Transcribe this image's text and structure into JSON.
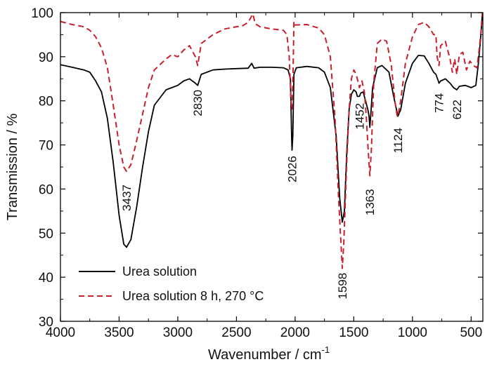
{
  "chart_data": {
    "type": "line",
    "xlabel": "Wavenumber / cm",
    "xlabel_sup": "-1",
    "ylabel": "Transmission / %",
    "xlim": [
      4000,
      400
    ],
    "ylim": [
      30,
      100
    ],
    "x_reversed": true,
    "x_ticks": [
      4000,
      3500,
      3000,
      2500,
      2000,
      1500,
      1000,
      500
    ],
    "y_ticks": [
      30,
      40,
      50,
      60,
      70,
      80,
      90,
      100
    ],
    "grid": false,
    "legend_position": "bottom-left",
    "series": [
      {
        "name": "Urea solution",
        "color": "#000000",
        "dash": "solid",
        "points": [
          [
            4000,
            88.2
          ],
          [
            3900,
            87.6
          ],
          [
            3800,
            87.0
          ],
          [
            3750,
            86.5
          ],
          [
            3700,
            84.5
          ],
          [
            3650,
            82.0
          ],
          [
            3600,
            76.0
          ],
          [
            3550,
            66.0
          ],
          [
            3500,
            54.0
          ],
          [
            3460,
            47.5
          ],
          [
            3437,
            46.8
          ],
          [
            3400,
            48.5
          ],
          [
            3350,
            56.0
          ],
          [
            3300,
            65.0
          ],
          [
            3250,
            73.0
          ],
          [
            3200,
            79.0
          ],
          [
            3100,
            82.5
          ],
          [
            3000,
            83.5
          ],
          [
            2950,
            84.5
          ],
          [
            2900,
            85.0
          ],
          [
            2850,
            84.0
          ],
          [
            2830,
            83.5
          ],
          [
            2800,
            86.0
          ],
          [
            2700,
            87.0
          ],
          [
            2600,
            87.2
          ],
          [
            2500,
            87.3
          ],
          [
            2400,
            87.4
          ],
          [
            2370,
            88.5
          ],
          [
            2350,
            87.4
          ],
          [
            2300,
            87.6
          ],
          [
            2200,
            87.6
          ],
          [
            2100,
            87.5
          ],
          [
            2060,
            87.0
          ],
          [
            2040,
            85.0
          ],
          [
            2030,
            72.0
          ],
          [
            2026,
            68.8
          ],
          [
            2020,
            72.0
          ],
          [
            2010,
            86.0
          ],
          [
            1990,
            87.5
          ],
          [
            1900,
            87.8
          ],
          [
            1800,
            87.5
          ],
          [
            1750,
            86.5
          ],
          [
            1700,
            83.0
          ],
          [
            1650,
            72.0
          ],
          [
            1620,
            58.0
          ],
          [
            1598,
            52.5
          ],
          [
            1580,
            55.0
          ],
          [
            1560,
            68.0
          ],
          [
            1540,
            78.0
          ],
          [
            1520,
            81.5
          ],
          [
            1500,
            82.5
          ],
          [
            1480,
            82.0
          ],
          [
            1470,
            81.0
          ],
          [
            1452,
            81.0
          ],
          [
            1440,
            81.8
          ],
          [
            1420,
            82.0
          ],
          [
            1400,
            80.0
          ],
          [
            1380,
            78.0
          ],
          [
            1370,
            76.5
          ],
          [
            1363,
            74.0
          ],
          [
            1355,
            77.0
          ],
          [
            1340,
            83.0
          ],
          [
            1300,
            87.5
          ],
          [
            1260,
            88.0
          ],
          [
            1200,
            86.5
          ],
          [
            1160,
            81.0
          ],
          [
            1124,
            76.5
          ],
          [
            1100,
            78.0
          ],
          [
            1060,
            84.0
          ],
          [
            1000,
            88.5
          ],
          [
            950,
            90.3
          ],
          [
            900,
            90.2
          ],
          [
            860,
            88.5
          ],
          [
            820,
            86.5
          ],
          [
            800,
            86.0
          ],
          [
            780,
            84.5
          ],
          [
            774,
            84.0
          ],
          [
            760,
            84.5
          ],
          [
            720,
            85.0
          ],
          [
            680,
            84.0
          ],
          [
            650,
            83.0
          ],
          [
            622,
            82.5
          ],
          [
            600,
            83.3
          ],
          [
            550,
            83.5
          ],
          [
            500,
            83.0
          ],
          [
            460,
            83.5
          ],
          [
            440,
            88.0
          ],
          [
            420,
            94.0
          ],
          [
            405,
            99.5
          ]
        ]
      },
      {
        "name": "Urea solution 8 h, 270 °C",
        "color": "#c8202e",
        "dash": "dashed",
        "points": [
          [
            4000,
            98.0
          ],
          [
            3900,
            97.3
          ],
          [
            3800,
            96.8
          ],
          [
            3750,
            96.0
          ],
          [
            3700,
            94.5
          ],
          [
            3650,
            92.0
          ],
          [
            3600,
            87.5
          ],
          [
            3550,
            79.0
          ],
          [
            3500,
            70.0
          ],
          [
            3460,
            65.0
          ],
          [
            3437,
            64.0
          ],
          [
            3400,
            65.5
          ],
          [
            3350,
            71.0
          ],
          [
            3300,
            77.0
          ],
          [
            3250,
            83.0
          ],
          [
            3200,
            87.0
          ],
          [
            3100,
            89.5
          ],
          [
            3050,
            90.5
          ],
          [
            3000,
            90.0
          ],
          [
            2950,
            91.5
          ],
          [
            2900,
            92.5
          ],
          [
            2850,
            90.0
          ],
          [
            2830,
            88.0
          ],
          [
            2800,
            93.0
          ],
          [
            2700,
            95.0
          ],
          [
            2600,
            96.3
          ],
          [
            2500,
            96.8
          ],
          [
            2450,
            97.0
          ],
          [
            2400,
            97.8
          ],
          [
            2360,
            99.7
          ],
          [
            2340,
            97.5
          ],
          [
            2300,
            96.8
          ],
          [
            2200,
            96.3
          ],
          [
            2100,
            96.0
          ],
          [
            2070,
            95.0
          ],
          [
            2050,
            90.0
          ],
          [
            2035,
            80.0
          ],
          [
            2026,
            78.0
          ],
          [
            2018,
            86.0
          ],
          [
            2010,
            98.0
          ],
          [
            2000,
            97.2
          ],
          [
            1900,
            97.3
          ],
          [
            1800,
            96.5
          ],
          [
            1750,
            95.0
          ],
          [
            1700,
            90.0
          ],
          [
            1660,
            76.0
          ],
          [
            1630,
            58.0
          ],
          [
            1610,
            48.0
          ],
          [
            1598,
            42.0
          ],
          [
            1585,
            48.0
          ],
          [
            1560,
            66.0
          ],
          [
            1540,
            78.0
          ],
          [
            1520,
            85.0
          ],
          [
            1500,
            87.0
          ],
          [
            1480,
            86.0
          ],
          [
            1460,
            84.0
          ],
          [
            1452,
            83.0
          ],
          [
            1430,
            84.5
          ],
          [
            1410,
            82.0
          ],
          [
            1395,
            77.0
          ],
          [
            1380,
            70.0
          ],
          [
            1363,
            63.0
          ],
          [
            1350,
            69.0
          ],
          [
            1330,
            84.0
          ],
          [
            1300,
            93.0
          ],
          [
            1260,
            94.0
          ],
          [
            1220,
            93.5
          ],
          [
            1180,
            88.0
          ],
          [
            1150,
            80.0
          ],
          [
            1130,
            76.5
          ],
          [
            1124,
            76.5
          ],
          [
            1100,
            80.0
          ],
          [
            1060,
            88.5
          ],
          [
            1000,
            94.5
          ],
          [
            950,
            97.3
          ],
          [
            900,
            97.8
          ],
          [
            860,
            96.8
          ],
          [
            820,
            95.0
          ],
          [
            800,
            95.0
          ],
          [
            790,
            90.0
          ],
          [
            774,
            88.0
          ],
          [
            760,
            92.5
          ],
          [
            720,
            93.5
          ],
          [
            680,
            89.5
          ],
          [
            660,
            86.5
          ],
          [
            640,
            89.5
          ],
          [
            622,
            86.0
          ],
          [
            600,
            90.5
          ],
          [
            570,
            91.0
          ],
          [
            540,
            87.0
          ],
          [
            510,
            89.0
          ],
          [
            480,
            88.0
          ],
          [
            450,
            87.5
          ],
          [
            430,
            92.0
          ],
          [
            415,
            96.0
          ],
          [
            405,
            100.0
          ]
        ]
      }
    ],
    "annotations": [
      {
        "text": "3437",
        "x": 3437,
        "y": 58
      },
      {
        "text": "2830",
        "x": 2830,
        "y": 79.5
      },
      {
        "text": "2026",
        "x": 2026,
        "y": 64.5
      },
      {
        "text": "1598",
        "x": 1598,
        "y": 38
      },
      {
        "text": "1452",
        "x": 1452,
        "y": 76.5
      },
      {
        "text": "1363",
        "x": 1363,
        "y": 57
      },
      {
        "text": "1124",
        "x": 1124,
        "y": 71
      },
      {
        "text": "774",
        "x": 774,
        "y": 79.5
      },
      {
        "text": "622",
        "x": 622,
        "y": 78
      }
    ]
  }
}
